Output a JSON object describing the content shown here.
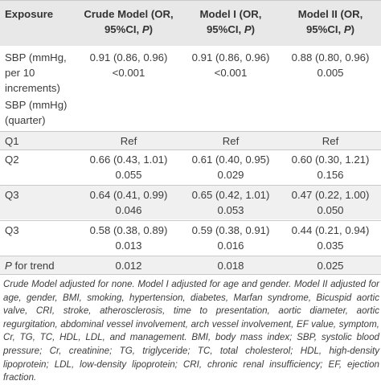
{
  "table": {
    "headers": [
      {
        "pre": "Exposure",
        "italic": "",
        "post": ""
      },
      {
        "pre": "Crude Model (OR, 95%CI, ",
        "italic": "P",
        "post": ")"
      },
      {
        "pre": "Model I (OR, 95%CI, ",
        "italic": "P",
        "post": ")"
      },
      {
        "pre": "Model II (OR, 95%CI, ",
        "italic": "P",
        "post": ")"
      }
    ],
    "rows": [
      {
        "label": "SBP (mmHg, per 10 increments)",
        "label_italic": "",
        "c1": [
          "0.91 (0.86, 0.96)",
          "<0.001"
        ],
        "c2": [
          "0.91 (0.86, 0.96)",
          "<0.001"
        ],
        "c3": [
          "0.88 (0.80, 0.96)",
          "0.005"
        ]
      },
      {
        "label": "SBP (mmHg) (quarter)",
        "label_italic": "",
        "c1": [],
        "c2": [],
        "c3": []
      },
      {
        "label": "Q1",
        "label_italic": "",
        "c1": [
          "Ref"
        ],
        "c2": [
          "Ref"
        ],
        "c3": [
          "Ref"
        ]
      },
      {
        "label": "Q2",
        "label_italic": "",
        "c1": [
          "0.66 (0.43, 1.01)",
          "0.055"
        ],
        "c2": [
          "0.61 (0.40, 0.95)",
          "0.029"
        ],
        "c3": [
          "0.60 (0.30, 1.21)",
          "0.156"
        ]
      },
      {
        "label": "Q3",
        "label_italic": "",
        "c1": [
          "0.64 (0.41, 0.99)",
          "0.046"
        ],
        "c2": [
          "0.65 (0.42, 1.01)",
          "0.053"
        ],
        "c3": [
          "0.47 (0.22, 1.00)",
          "0.050"
        ]
      },
      {
        "label": "Q3",
        "label_italic": "",
        "c1": [
          "0.58 (0.38, 0.89)",
          "0.013"
        ],
        "c2": [
          "0.59 (0.38, 0.91)",
          "0.016"
        ],
        "c3": [
          "0.44 (0.21, 0.94)",
          "0.035"
        ]
      },
      {
        "label": " for trend",
        "label_italic": "P",
        "c1": [
          "0.012"
        ],
        "c2": [
          "0.018"
        ],
        "c3": [
          "0.025"
        ]
      }
    ]
  },
  "footnote": "Crude Model adjusted for none. Model I adjusted for age and gender. Model II adjusted for age, gender, BMI, smoking, hypertension, diabetes, Marfan syndrome, Bicuspid aortic valve, CRI, stroke, atherosclerosis, time to presentation, aortic diameter, aortic regurgitation, abdominal vessel involvement, arch vessel involvement, EF value, symptom, Cr, TG, TC, HDL, LDL, and management. BMI, body mass index; SBP, systolic blood pressure; Cr, creatinine; TG, triglyceride; TC, total cholesterol; HDL, high-density lipoprotein; LDL, low-density lipoprotein; CRI, chronic renal insufficiency; EF, ejection fraction."
}
